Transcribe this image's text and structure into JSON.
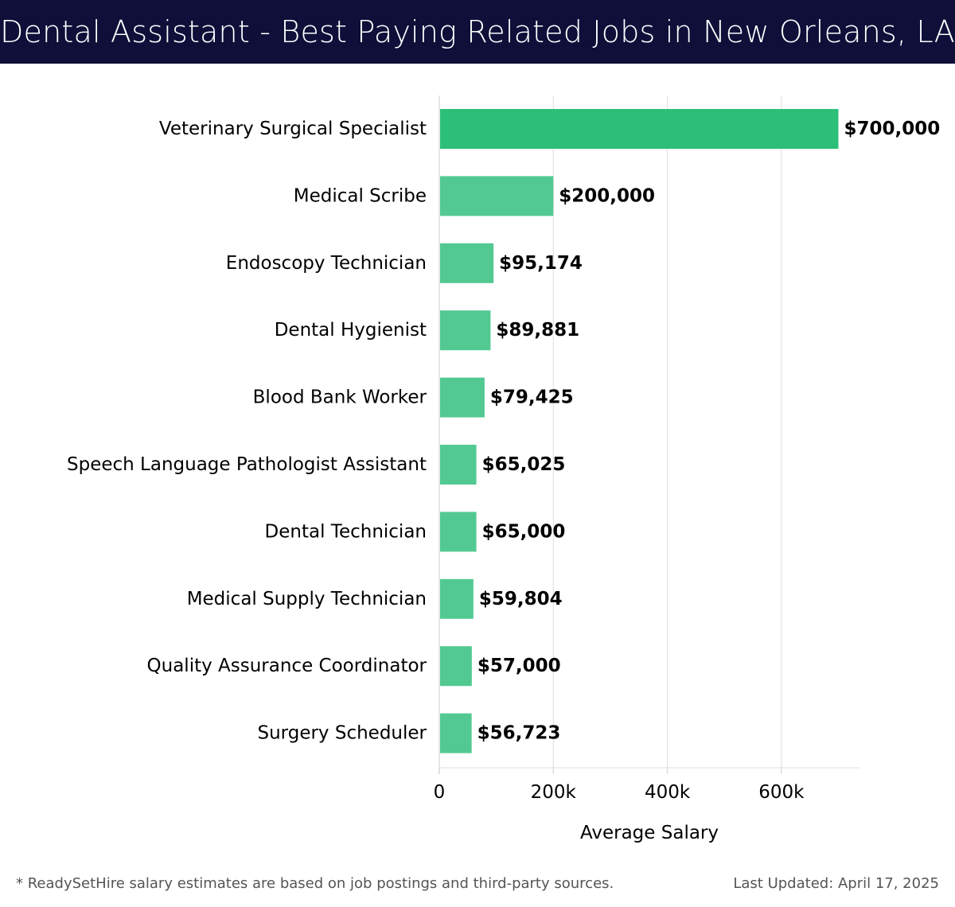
{
  "header": {
    "title": "Dental Assistant - Best Paying Related Jobs in New Orleans, LA"
  },
  "colors": {
    "title_bg": "#0f0f3a",
    "title_text": "#ffffff",
    "bar_top": "#2bbf78",
    "bar": "#52c991",
    "grid": "#dddddd",
    "text": "#000000",
    "footer_text": "#555555"
  },
  "chart_data": {
    "type": "bar",
    "orientation": "horizontal",
    "title": "Dental Assistant - Best Paying Related Jobs in New Orleans, LA",
    "xlabel": "Average Salary",
    "ylabel": "",
    "categories": [
      "Veterinary Surgical Specialist",
      "Medical Scribe",
      "Endoscopy Technician",
      "Dental Hygienist",
      "Blood Bank Worker",
      "Speech Language Pathologist Assistant",
      "Dental Technician",
      "Medical Supply Technician",
      "Quality Assurance Coordinator",
      "Surgery Scheduler"
    ],
    "values": [
      700000,
      200000,
      95174,
      89881,
      79425,
      65025,
      65000,
      59804,
      57000,
      56723
    ],
    "value_labels": [
      "$700,000",
      "$200,000",
      "$95,174",
      "$89,881",
      "$79,425",
      "$65,025",
      "$65,000",
      "$59,804",
      "$57,000",
      "$56,723"
    ],
    "xlim": [
      0,
      737000
    ],
    "x_ticks": [
      0,
      200000,
      400000,
      600000
    ],
    "x_tick_labels": [
      "0",
      "200k",
      "400k",
      "600k"
    ],
    "grid": "vertical",
    "legend": "none"
  },
  "footer": {
    "note": "* ReadySetHire salary estimates are based on job postings and third-party sources.",
    "updated": "Last Updated: April 17, 2025"
  }
}
